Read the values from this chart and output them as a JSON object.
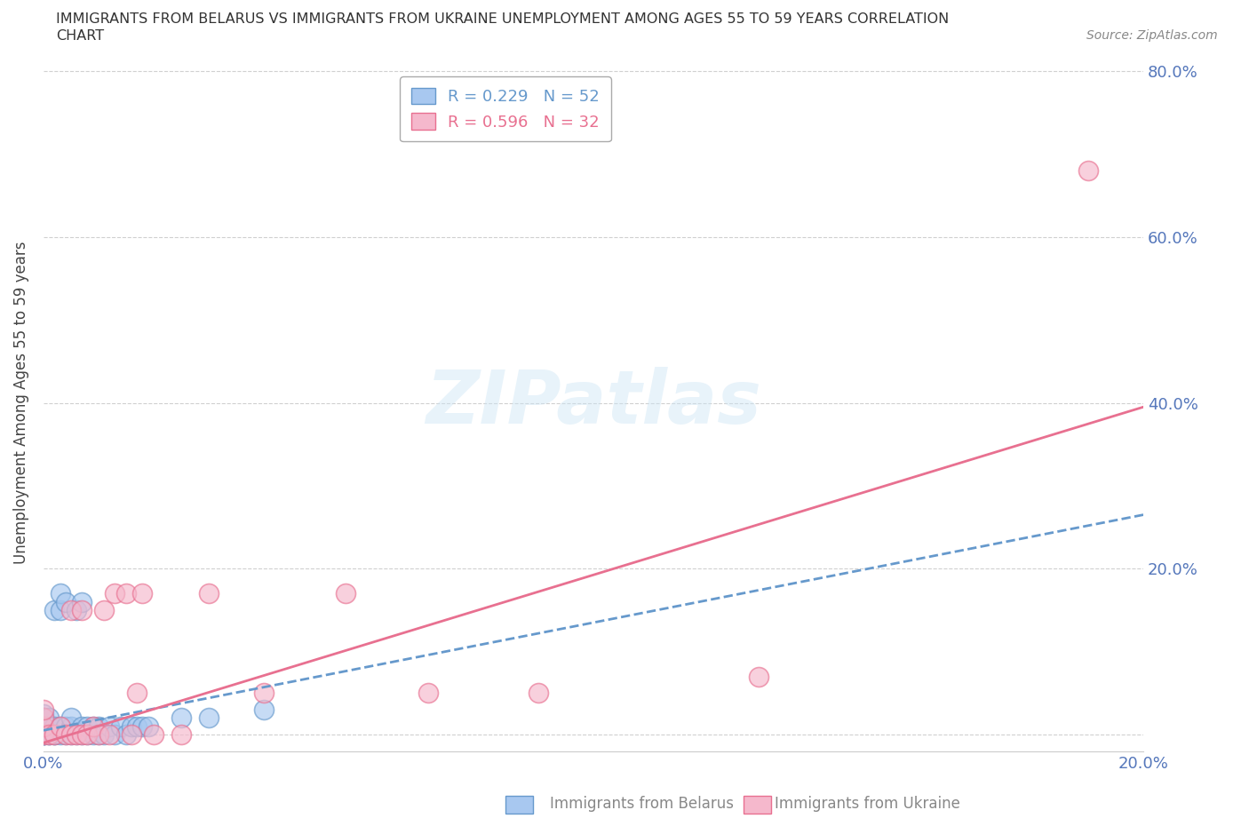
{
  "title_line1": "IMMIGRANTS FROM BELARUS VS IMMIGRANTS FROM UKRAINE UNEMPLOYMENT AMONG AGES 55 TO 59 YEARS CORRELATION",
  "title_line2": "CHART",
  "source": "Source: ZipAtlas.com",
  "ylabel": "Unemployment Among Ages 55 to 59 years",
  "xlim": [
    0.0,
    0.2
  ],
  "ylim": [
    -0.02,
    0.82
  ],
  "xticks": [
    0.0,
    0.05,
    0.1,
    0.15,
    0.2
  ],
  "yticks": [
    0.0,
    0.2,
    0.4,
    0.6,
    0.8
  ],
  "xticklabels": [
    "0.0%",
    "",
    "",
    "",
    "20.0%"
  ],
  "yticklabels": [
    "",
    "20.0%",
    "40.0%",
    "60.0%",
    "80.0%"
  ],
  "background_color": "#ffffff",
  "grid_color": "#d0d0d0",
  "belarus_color": "#a8c8f0",
  "ukraine_color": "#f5b8cc",
  "belarus_edge": "#6699cc",
  "ukraine_edge": "#e87090",
  "belarus_R": 0.229,
  "belarus_N": 52,
  "ukraine_R": 0.596,
  "ukraine_N": 32,
  "legend_label_belarus": "Immigrants from Belarus",
  "legend_label_ukraine": "Immigrants from Ukraine",
  "belarus_x": [
    0.0,
    0.0,
    0.0,
    0.0,
    0.0,
    0.0,
    0.0,
    0.0,
    0.0,
    0.0,
    0.001,
    0.001,
    0.001,
    0.001,
    0.001,
    0.002,
    0.002,
    0.002,
    0.002,
    0.003,
    0.003,
    0.003,
    0.003,
    0.004,
    0.004,
    0.004,
    0.005,
    0.005,
    0.005,
    0.006,
    0.006,
    0.007,
    0.007,
    0.007,
    0.008,
    0.008,
    0.009,
    0.009,
    0.01,
    0.01,
    0.011,
    0.012,
    0.013,
    0.014,
    0.015,
    0.016,
    0.017,
    0.018,
    0.019,
    0.025,
    0.03,
    0.04
  ],
  "belarus_y": [
    0.0,
    0.0,
    0.0,
    0.0,
    0.01,
    0.01,
    0.015,
    0.02,
    0.02,
    0.025,
    0.0,
    0.0,
    0.01,
    0.01,
    0.02,
    0.0,
    0.0,
    0.01,
    0.15,
    0.0,
    0.01,
    0.15,
    0.17,
    0.0,
    0.01,
    0.16,
    0.0,
    0.01,
    0.02,
    0.0,
    0.15,
    0.0,
    0.01,
    0.16,
    0.0,
    0.01,
    0.0,
    0.01,
    0.0,
    0.01,
    0.0,
    0.01,
    0.0,
    0.01,
    0.0,
    0.01,
    0.01,
    0.01,
    0.01,
    0.02,
    0.02,
    0.03
  ],
  "ukraine_x": [
    0.0,
    0.0,
    0.0,
    0.0,
    0.001,
    0.002,
    0.003,
    0.004,
    0.005,
    0.005,
    0.006,
    0.007,
    0.007,
    0.008,
    0.009,
    0.01,
    0.011,
    0.012,
    0.013,
    0.015,
    0.016,
    0.017,
    0.018,
    0.02,
    0.025,
    0.03,
    0.04,
    0.055,
    0.07,
    0.09,
    0.13,
    0.19
  ],
  "ukraine_y": [
    0.0,
    0.01,
    0.02,
    0.03,
    0.0,
    0.0,
    0.01,
    0.0,
    0.0,
    0.15,
    0.0,
    0.0,
    0.15,
    0.0,
    0.01,
    0.0,
    0.15,
    0.0,
    0.17,
    0.17,
    0.0,
    0.05,
    0.17,
    0.0,
    0.0,
    0.17,
    0.05,
    0.17,
    0.05,
    0.05,
    0.07,
    0.68
  ],
  "ukraine_line_x0": 0.0,
  "ukraine_line_y0": -0.01,
  "ukraine_line_x1": 0.2,
  "ukraine_line_y1": 0.395,
  "belarus_line_x0": 0.0,
  "belarus_line_y0": 0.005,
  "belarus_line_x1": 0.2,
  "belarus_line_y1": 0.265
}
